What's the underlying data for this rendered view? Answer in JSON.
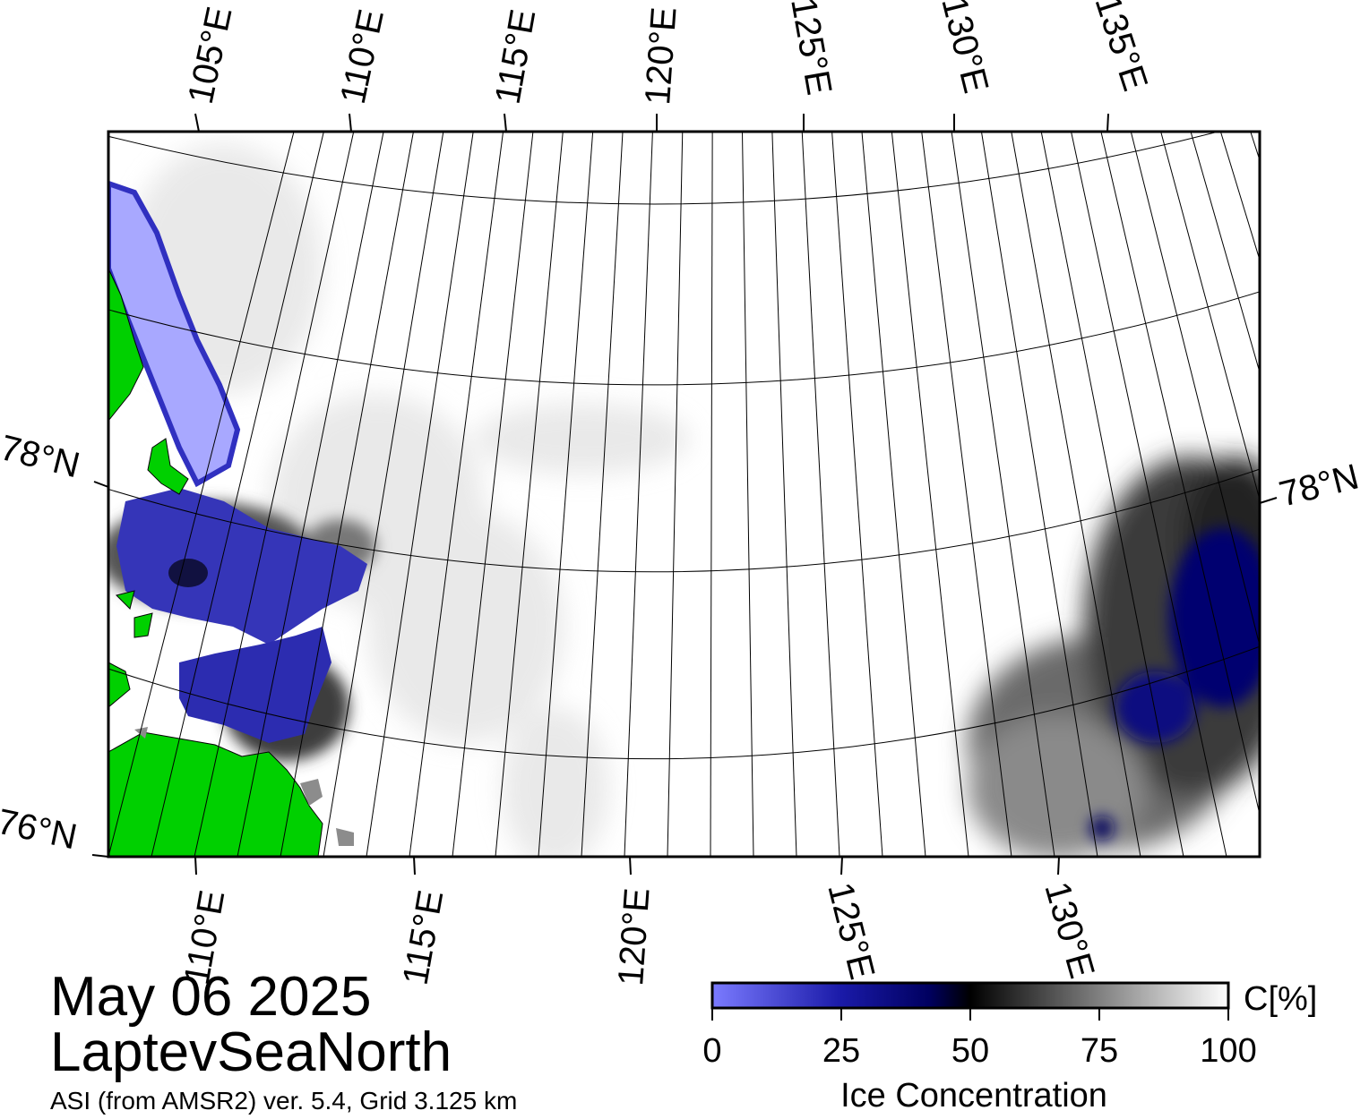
{
  "map": {
    "region": "LaptevSeaNorth",
    "date": "May 06 2025",
    "source": "ASI (from AMSR2) ver. 5.4,  Grid 3.125 km",
    "top_lon_labels": [
      "105°E",
      "110°E",
      "115°E",
      "120°E",
      "125°E",
      "130°E",
      "135°E"
    ],
    "bottom_lon_labels": [
      "110°E",
      "115°E",
      "120°E",
      "125°E",
      "130°E"
    ],
    "lat_labels": [
      "78°N",
      "76°N"
    ],
    "right_lat_label": "78°N",
    "colors": {
      "land": "#00d000",
      "coast_shadow": "#8c8c8c",
      "open_water": "#ffffff",
      "low_ice": "#7b7bff",
      "mid_ice": "#00006e",
      "high_ice": "#000000"
    }
  },
  "colorbar": {
    "title": "Ice Concentration",
    "unit": "C[%]",
    "ticks": [
      "0",
      "25",
      "50",
      "75",
      "100"
    ],
    "stops": [
      "#7b7bff",
      "#1a1aa8",
      "#000060",
      "#000000",
      "#808080",
      "#ffffff"
    ]
  }
}
